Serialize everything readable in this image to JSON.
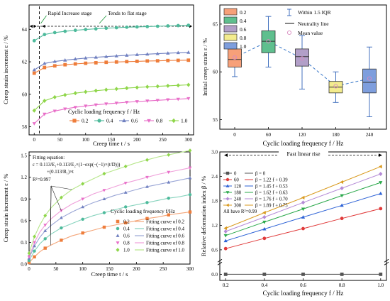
{
  "panels": {
    "a": {
      "tag": "(a)"
    },
    "b": {
      "tag": "(b)"
    },
    "c": {
      "tag": "(c)"
    },
    "d": {
      "tag": "(d)"
    }
  },
  "chart_data": [
    {
      "id": "a",
      "type": "line",
      "xlabel": "Creep time t / s",
      "ylabel": "Creep strain increment ε / %",
      "xlim": [
        -10,
        310
      ],
      "ylim": [
        57.5,
        65.5
      ],
      "xticks": [
        "0",
        "50",
        "100",
        "150",
        "200",
        "250",
        "300"
      ],
      "yticks": [
        "58",
        "60",
        "62",
        "64"
      ],
      "legend_title": "Cyclic loading frequency f / Hz",
      "annotations": {
        "left": "Rapid Increase stage",
        "right": "Tends to flat stage",
        "divider_t": 10
      },
      "x": [
        0,
        20,
        40,
        60,
        80,
        100,
        120,
        140,
        160,
        180,
        200,
        220,
        240,
        260,
        280,
        300
      ],
      "series": [
        {
          "name": "0.2",
          "color": "#ee7d3b",
          "marker": "square",
          "values": [
            61.3,
            61.65,
            61.75,
            61.82,
            61.87,
            61.91,
            61.94,
            61.97,
            61.99,
            62.01,
            62.03,
            62.05,
            62.06,
            62.08,
            62.09,
            62.1
          ]
        },
        {
          "name": "0.4",
          "color": "#4dba9b",
          "marker": "circle",
          "values": [
            63.3,
            63.68,
            63.8,
            63.88,
            63.94,
            63.99,
            64.03,
            64.07,
            64.1,
            64.13,
            64.15,
            64.17,
            64.19,
            64.21,
            64.23,
            64.25
          ]
        },
        {
          "name": "0.6",
          "color": "#7080c0",
          "marker": "triangle-up",
          "values": [
            61.5,
            61.9,
            62.02,
            62.1,
            62.17,
            62.23,
            62.28,
            62.32,
            62.36,
            62.4,
            62.44,
            62.47,
            62.5,
            62.53,
            62.56,
            62.58
          ]
        },
        {
          "name": "0.8",
          "color": "#e86ec8",
          "marker": "triangle-down",
          "values": [
            58.2,
            58.78,
            58.97,
            59.1,
            59.2,
            59.28,
            59.35,
            59.41,
            59.46,
            59.51,
            59.55,
            59.59,
            59.63,
            59.67,
            59.7,
            59.74
          ]
        },
        {
          "name": "1.0",
          "color": "#8fd64a",
          "marker": "diamond",
          "values": [
            59.0,
            59.6,
            59.82,
            59.96,
            60.07,
            60.15,
            60.22,
            60.28,
            60.33,
            60.38,
            60.42,
            60.46,
            60.49,
            60.52,
            60.55,
            60.58
          ]
        }
      ]
    },
    {
      "id": "b",
      "type": "box",
      "xlabel": "Cyclic loading frequency f / Hz",
      "ylabel": "Initial creep strain ε / %",
      "ylim": [
        54,
        67
      ],
      "yticks": [
        "55",
        "60",
        "65"
      ],
      "categories": [
        "0",
        "60",
        "120",
        "180",
        "240"
      ],
      "legend": [
        "0.2",
        "0.4",
        "0.6",
        "0.8",
        "1.0",
        "Within 1.5 IQR",
        "Neutrality line",
        "Mean value"
      ],
      "boxes": [
        {
          "name": "0.2",
          "color": "#f7a079",
          "whisker_low": 59.5,
          "q1": 60.5,
          "median": 61.3,
          "q3": 62.4,
          "whisker_high": 63.0,
          "mean": 61.5
        },
        {
          "name": "0.4",
          "color": "#5fbf8e",
          "whisker_low": 60.5,
          "q1": 62.0,
          "median": 63.2,
          "q3": 64.3,
          "whisker_high": 65.8,
          "mean": 63.2
        },
        {
          "name": "0.6",
          "color": "#b29fc8",
          "whisker_low": 58.2,
          "q1": 60.6,
          "median": 61.6,
          "q3": 62.4,
          "whisker_high": 63.8,
          "mean": 61.4
        },
        {
          "name": "0.8",
          "color": "#f3ec8e",
          "whisker_low": 56.8,
          "q1": 57.8,
          "median": 58.4,
          "q3": 59.0,
          "whisker_high": 60.0,
          "mean": 58.5
        },
        {
          "name": "1.0",
          "color": "#7e9edd",
          "whisker_low": 55.3,
          "q1": 57.8,
          "median": 58.9,
          "q3": 60.3,
          "whisker_high": 62.6,
          "mean": 59.3
        }
      ]
    },
    {
      "id": "c",
      "type": "scatter",
      "xlabel": "Creep time t / s",
      "ylabel": "Creep strain increment ε / %",
      "xlim": [
        0,
        300
      ],
      "ylim": [
        0,
        1.55
      ],
      "xticks": [
        "0",
        "50",
        "100",
        "150",
        "200",
        "250",
        "300"
      ],
      "yticks": [
        "0.0",
        "0.3",
        "0.6",
        "0.9",
        "1.2",
        "1.5"
      ],
      "legend_title": "Cyclic loading frequency f/Hz",
      "equation": [
        "Fitting equation:",
        "ε = 0.113/E₁+0.113/E₂×(1−exp(−(−1)×(t/D)))",
        "+(0.113/B₁)×t",
        "R²=0.997"
      ],
      "x": [
        0,
        10,
        20,
        30,
        40,
        60,
        80,
        100,
        120,
        140,
        160,
        180,
        200,
        220,
        240,
        260,
        280,
        300
      ],
      "series": [
        {
          "name": "0.2",
          "fit_name": "Fitting curve of 0.2",
          "color": "#ee7d3b",
          "fit_color": "#f4a67a",
          "marker": "square",
          "values": [
            0.02,
            0.1,
            0.17,
            0.22,
            0.26,
            0.33,
            0.39,
            0.43,
            0.47,
            0.51,
            0.54,
            0.57,
            0.6,
            0.63,
            0.65,
            0.68,
            0.7,
            0.72
          ]
        },
        {
          "name": "0.4",
          "fit_name": "Fitting curve of 0.4",
          "color": "#4dba9b",
          "fit_color": "#86d3bd",
          "marker": "circle",
          "values": [
            0.05,
            0.18,
            0.28,
            0.35,
            0.41,
            0.5,
            0.56,
            0.62,
            0.67,
            0.71,
            0.75,
            0.79,
            0.82,
            0.85,
            0.88,
            0.91,
            0.93,
            0.96
          ]
        },
        {
          "name": "0.6",
          "fit_name": "Fitting curve of 0.6",
          "color": "#7080c0",
          "fit_color": "#9aa6d6",
          "marker": "triangle-up",
          "values": [
            0.08,
            0.25,
            0.37,
            0.46,
            0.53,
            0.64,
            0.72,
            0.79,
            0.85,
            0.9,
            0.95,
            0.99,
            1.03,
            1.07,
            1.1,
            1.13,
            1.16,
            1.19
          ]
        },
        {
          "name": "0.8",
          "fit_name": "Fitting curve of 0.8",
          "color": "#e86ec8",
          "fit_color": "#efa0da",
          "marker": "triangle-down",
          "values": [
            0.1,
            0.3,
            0.44,
            0.54,
            0.62,
            0.74,
            0.83,
            0.9,
            0.97,
            1.02,
            1.07,
            1.12,
            1.16,
            1.2,
            1.24,
            1.27,
            1.3,
            1.33
          ]
        },
        {
          "name": "1.0",
          "fit_name": "Fitting curve of 1.0",
          "color": "#8fd64a",
          "fit_color": "#b6e68a",
          "marker": "diamond",
          "values": [
            0.15,
            0.38,
            0.54,
            0.67,
            0.77,
            0.92,
            1.03,
            1.11,
            1.18,
            1.25,
            1.3,
            1.35,
            1.4,
            1.44,
            1.48,
            1.51,
            1.54,
            1.57
          ]
        }
      ]
    },
    {
      "id": "d",
      "type": "scatter",
      "xlabel": "Cyclic loading frequency f / Hz",
      "ylabel": "Relative deformation index β / %",
      "xlim": [
        0.2,
        1.0
      ],
      "ylim": [
        -0.1,
        3.0
      ],
      "xticks": [
        "0.2",
        "0.4",
        "0.6",
        "0.8",
        "1.0"
      ],
      "yticks": [
        "0.0",
        "0.6",
        "1.2",
        "1.8",
        "2.4",
        "3.0"
      ],
      "annotation": "Fast linear rise",
      "r2_note": "All have R²=0.99",
      "x": [
        0.2,
        0.4,
        0.6,
        0.8,
        1.0
      ],
      "series": [
        {
          "name": "0",
          "fit_label": "β = 0",
          "color": "#555555",
          "marker": "square",
          "values": [
            0.0,
            0.0,
            0.0,
            0.0,
            0.0
          ]
        },
        {
          "name": "60",
          "fit_label": "β = 1.22 f + 0.39",
          "color": "#e03a3a",
          "marker": "circle",
          "values": [
            0.63,
            0.88,
            1.12,
            1.37,
            1.61
          ]
        },
        {
          "name": "120",
          "fit_label": "β = 1.45 f + 0.53",
          "color": "#2d62d6",
          "marker": "triangle-up",
          "values": [
            0.82,
            1.11,
            1.4,
            1.69,
            1.98
          ]
        },
        {
          "name": "180",
          "fit_label": "β = 1.62 f + 0.63",
          "color": "#2aa84a",
          "marker": "triangle-down",
          "values": [
            0.95,
            1.28,
            1.6,
            1.93,
            2.25
          ]
        },
        {
          "name": "240",
          "fit_label": "β = 1.76 f + 0.70",
          "color": "#b48ad6",
          "marker": "diamond",
          "values": [
            1.05,
            1.4,
            1.76,
            2.11,
            2.46
          ]
        },
        {
          "name": "300",
          "fit_label": "β = 1.89 f + 0.75",
          "color": "#d99a1e",
          "marker": "triangle-left",
          "values": [
            1.13,
            1.51,
            1.88,
            2.26,
            2.64
          ]
        }
      ]
    }
  ]
}
